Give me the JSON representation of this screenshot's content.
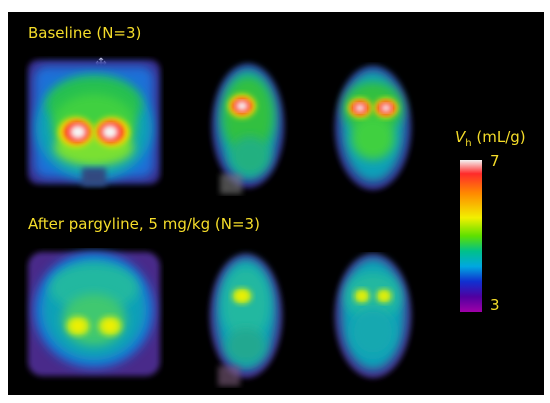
{
  "rows": [
    {
      "label": "Baseline (N=3)"
    },
    {
      "label": "After pargyline, 5 mg/kg (N=3)"
    }
  ],
  "colorbar": {
    "symbol": "V",
    "subscript": "h",
    "unit": "(mL/g)",
    "max_label": "7",
    "min_label": "3"
  }
}
